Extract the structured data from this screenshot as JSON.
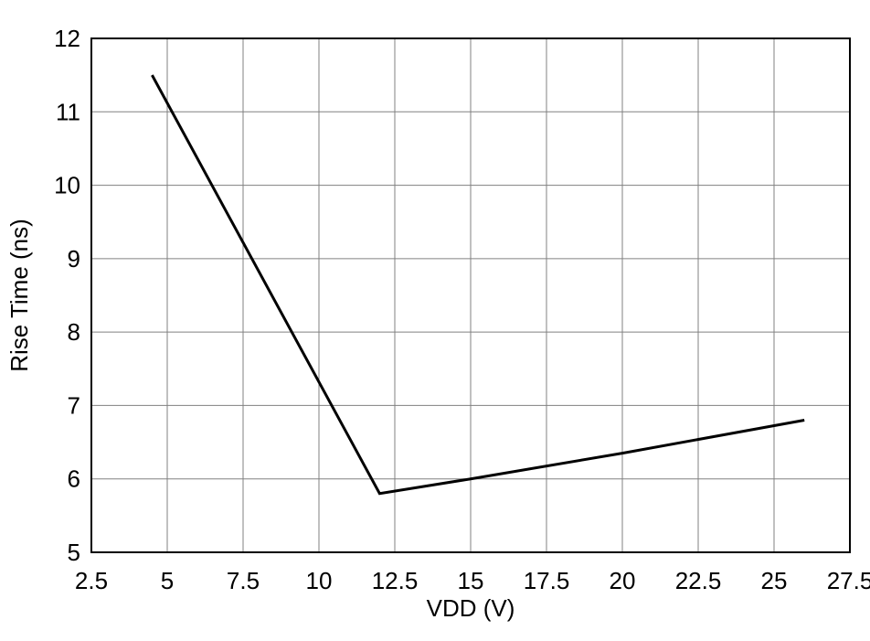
{
  "chart_data": {
    "type": "line",
    "title": "",
    "xlabel": "VDD (V)",
    "ylabel": "Rise Time (ns)",
    "xlim": [
      2.5,
      27.5
    ],
    "ylim": [
      5,
      12
    ],
    "xticks": [
      2.5,
      5,
      7.5,
      10,
      12.5,
      15,
      17.5,
      20,
      22.5,
      25,
      27.5
    ],
    "yticks": [
      5,
      6,
      7,
      8,
      9,
      10,
      11,
      12
    ],
    "grid": true,
    "legend": "none",
    "series": [
      {
        "name": "Rise Time",
        "x": [
          4.5,
          12,
          15,
          20,
          26
        ],
        "y": [
          11.5,
          5.8,
          6.0,
          6.35,
          6.8
        ],
        "color": "#000000",
        "width": 3
      }
    ]
  },
  "colors": {
    "background": "#ffffff",
    "grid": "#808080",
    "axis_border": "#000000",
    "text": "#000000"
  }
}
